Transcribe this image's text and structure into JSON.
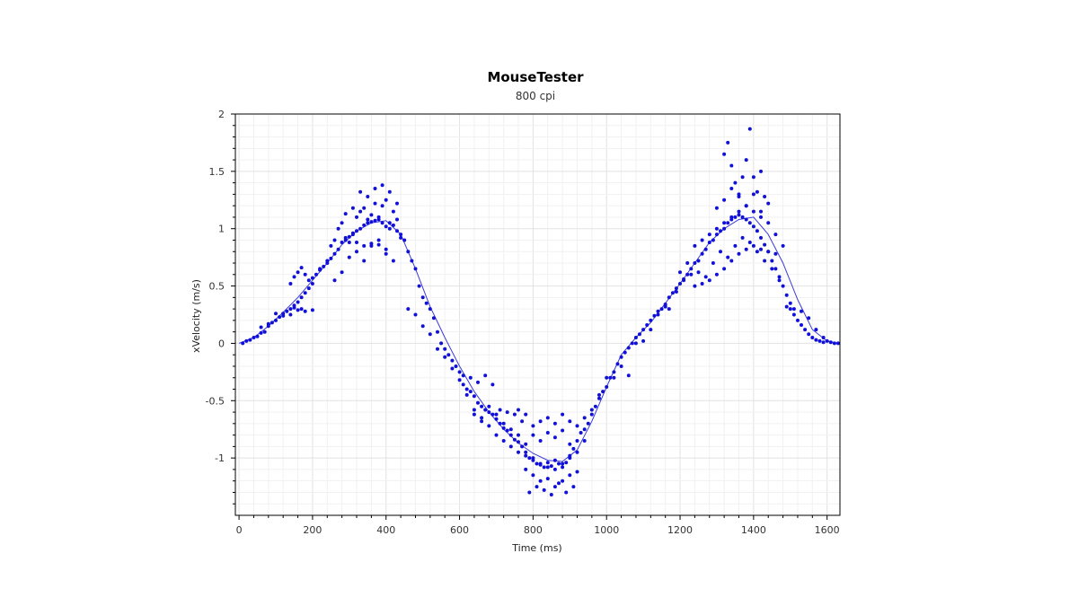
{
  "chart_data": {
    "type": "scatter",
    "title": "MouseTester",
    "subtitle": "800 cpi",
    "xlabel": "Time (ms)",
    "ylabel": "xVelocity (m/s)",
    "xlim": [
      -10,
      1635
    ],
    "ylim": [
      -1.5,
      2
    ],
    "xticks": [
      0,
      200,
      400,
      600,
      800,
      1000,
      1200,
      1400,
      1600
    ],
    "yticks": [
      -1,
      -0.5,
      0,
      0.5,
      1,
      1.5,
      2
    ],
    "grid": true,
    "legend": "none",
    "colors": {
      "points": "#1010d8",
      "line": "#3a3ad8",
      "grid": "#ebebeb",
      "axis": "#000000"
    },
    "series": [
      {
        "style": "line",
        "x": [
          0,
          40,
          80,
          120,
          160,
          200,
          240,
          280,
          320,
          360,
          400,
          440,
          480,
          520,
          560,
          600,
          640,
          680,
          720,
          760,
          800,
          840,
          880,
          920,
          960,
          1000,
          1040,
          1080,
          1120,
          1160,
          1200,
          1240,
          1280,
          1320,
          1360,
          1400,
          1440,
          1480,
          1520,
          1560,
          1600,
          1630
        ],
        "y": [
          0,
          0.05,
          0.15,
          0.27,
          0.4,
          0.55,
          0.7,
          0.86,
          0.98,
          1.05,
          1.07,
          0.95,
          0.65,
          0.32,
          0.05,
          -0.2,
          -0.42,
          -0.6,
          -0.75,
          -0.87,
          -0.96,
          -1.02,
          -1.03,
          -0.93,
          -0.68,
          -0.38,
          -0.1,
          0.05,
          0.18,
          0.35,
          0.52,
          0.7,
          0.88,
          1.0,
          1.08,
          1.1,
          0.95,
          0.7,
          0.38,
          0.12,
          0.02,
          0
        ]
      },
      {
        "style": "points",
        "x": [
          10,
          20,
          30,
          40,
          50,
          60,
          70,
          80,
          90,
          100,
          110,
          120,
          130,
          140,
          150,
          160,
          170,
          180,
          190,
          200,
          60,
          80,
          100,
          120,
          140,
          150,
          160,
          170,
          180,
          200,
          140,
          150,
          160,
          170,
          180,
          190,
          200,
          210,
          220,
          230,
          240,
          250,
          260,
          270,
          280,
          290,
          300,
          310,
          320,
          330,
          340,
          350,
          360,
          370,
          380,
          390,
          400,
          410,
          420,
          430,
          440,
          450,
          220,
          240,
          250,
          260,
          270,
          280,
          290,
          300,
          310,
          320,
          330,
          340,
          350,
          360,
          370,
          380,
          390,
          400,
          410,
          420,
          430,
          440,
          260,
          280,
          300,
          320,
          340,
          360,
          380,
          400,
          420,
          290,
          310,
          330,
          350,
          370,
          390,
          410,
          430,
          320,
          340,
          360,
          380,
          400,
          460,
          470,
          480,
          490,
          500,
          510,
          520,
          530,
          540,
          550,
          560,
          570,
          580,
          590,
          600,
          460,
          480,
          500,
          520,
          540,
          560,
          580,
          600,
          610,
          620,
          630,
          640,
          650,
          660,
          670,
          680,
          690,
          700,
          710,
          720,
          730,
          740,
          750,
          760,
          610,
          630,
          650,
          670,
          690,
          710,
          730,
          750,
          770,
          620,
          640,
          660,
          680,
          700,
          720,
          740,
          760,
          780,
          640,
          660,
          680,
          700,
          720,
          740,
          760,
          780,
          800,
          820,
          840,
          860,
          880,
          900,
          920,
          940,
          770,
          780,
          790,
          800,
          810,
          820,
          830,
          840,
          850,
          860,
          870,
          880,
          890,
          900,
          910,
          920,
          930,
          940,
          780,
          800,
          820,
          840,
          860,
          880,
          900,
          920,
          790,
          810,
          830,
          850,
          870,
          890,
          910,
          760,
          780,
          800,
          820,
          840,
          860,
          880,
          900,
          920,
          800,
          820,
          840,
          860,
          880,
          900,
          940,
          950,
          960,
          970,
          980,
          990,
          1000,
          1010,
          1020,
          1030,
          1040,
          1050,
          1060,
          1070,
          1080,
          1090,
          1100,
          1110,
          1120,
          1130,
          1140,
          1150,
          1160,
          960,
          980,
          1000,
          1020,
          1040,
          1060,
          1080,
          1100,
          1120,
          1140,
          1160,
          1170,
          1180,
          1190,
          1200,
          1210,
          1220,
          1230,
          1240,
          1250,
          1260,
          1270,
          1280,
          1290,
          1300,
          1310,
          1320,
          1330,
          1340,
          1350,
          1360,
          1370,
          1380,
          1390,
          1400,
          1410,
          1420,
          1430,
          1440,
          1450,
          1460,
          1470,
          1480,
          1490,
          1500,
          1170,
          1190,
          1210,
          1230,
          1250,
          1270,
          1290,
          1310,
          1330,
          1350,
          1370,
          1390,
          1410,
          1430,
          1450,
          1470,
          1490,
          1200,
          1220,
          1240,
          1260,
          1280,
          1300,
          1320,
          1340,
          1360,
          1380,
          1400,
          1420,
          1440,
          1460,
          1480,
          1240,
          1260,
          1280,
          1300,
          1320,
          1340,
          1360,
          1380,
          1400,
          1420,
          1440,
          1460,
          1500,
          1510,
          1520,
          1530,
          1540,
          1550,
          1560,
          1570,
          1580,
          1590,
          1600,
          1610,
          1620,
          1630,
          1510,
          1530,
          1550,
          1570,
          1590,
          1320,
          1330,
          1340,
          1350,
          1360,
          1370,
          1380,
          1390,
          1400,
          1410,
          1420,
          1430,
          1300,
          1320,
          1340,
          1360,
          1380,
          1400,
          1420,
          1440
        ],
        "y": [
          0.0,
          0.02,
          0.03,
          0.05,
          0.06,
          0.09,
          0.1,
          0.15,
          0.18,
          0.2,
          0.23,
          0.26,
          0.28,
          0.3,
          0.33,
          0.36,
          0.4,
          0.44,
          0.48,
          0.52,
          0.14,
          0.17,
          0.26,
          0.24,
          0.25,
          0.31,
          0.29,
          0.3,
          0.28,
          0.29,
          0.52,
          0.58,
          0.62,
          0.66,
          0.6,
          0.55,
          0.57,
          0.6,
          0.64,
          0.67,
          0.72,
          0.74,
          0.78,
          0.82,
          0.88,
          0.9,
          0.93,
          0.95,
          0.98,
          1.0,
          1.03,
          1.05,
          1.06,
          1.07,
          1.08,
          1.05,
          1.02,
          1.0,
          1.03,
          0.98,
          0.95,
          0.9,
          0.65,
          0.7,
          0.85,
          0.9,
          1.0,
          1.05,
          0.92,
          0.88,
          0.96,
          1.1,
          1.15,
          1.18,
          1.08,
          1.12,
          1.22,
          1.1,
          1.2,
          1.25,
          1.05,
          1.15,
          1.08,
          0.92,
          0.55,
          0.62,
          0.75,
          0.8,
          0.72,
          0.85,
          0.9,
          0.78,
          0.72,
          1.13,
          1.18,
          1.32,
          1.28,
          1.35,
          1.38,
          1.32,
          1.22,
          0.88,
          0.85,
          0.87,
          0.86,
          0.82,
          0.8,
          0.72,
          0.65,
          0.5,
          0.4,
          0.35,
          0.3,
          0.22,
          0.1,
          0.0,
          -0.05,
          -0.1,
          -0.15,
          -0.2,
          -0.25,
          0.3,
          0.25,
          0.15,
          0.08,
          -0.05,
          -0.12,
          -0.22,
          -0.32,
          -0.36,
          -0.4,
          -0.42,
          -0.46,
          -0.52,
          -0.55,
          -0.58,
          -0.6,
          -0.62,
          -0.66,
          -0.7,
          -0.74,
          -0.76,
          -0.8,
          -0.84,
          -0.86,
          -0.28,
          -0.3,
          -0.34,
          -0.28,
          -0.36,
          -0.58,
          -0.6,
          -0.62,
          -0.68,
          -0.45,
          -0.62,
          -0.68,
          -0.55,
          -0.62,
          -0.7,
          -0.75,
          -0.8,
          -0.88,
          -0.58,
          -0.65,
          -0.72,
          -0.8,
          -0.85,
          -0.9,
          -0.95,
          -0.98,
          -1.0,
          -1.05,
          -1.08,
          -1.1,
          -1.05,
          -1.0,
          -0.95,
          -0.85,
          -0.9,
          -0.95,
          -1.0,
          -1.02,
          -1.05,
          -1.06,
          -1.08,
          -1.04,
          -1.07,
          -1.02,
          -1.05,
          -1.08,
          -1.04,
          -0.98,
          -0.92,
          -0.85,
          -0.78,
          -0.65,
          -1.1,
          -1.15,
          -1.2,
          -1.18,
          -1.25,
          -1.2,
          -1.15,
          -1.12,
          -1.3,
          -1.25,
          -1.28,
          -1.32,
          -1.22,
          -1.3,
          -1.25,
          -0.58,
          -0.62,
          -0.72,
          -0.68,
          -0.65,
          -0.7,
          -0.62,
          -0.68,
          -0.72,
          -0.8,
          -0.85,
          -0.78,
          -0.82,
          -0.76,
          -0.88,
          -0.75,
          -0.7,
          -0.62,
          -0.55,
          -0.48,
          -0.42,
          -0.38,
          -0.3,
          -0.25,
          -0.18,
          -0.12,
          -0.08,
          -0.04,
          0.0,
          0.05,
          0.08,
          0.12,
          0.16,
          0.2,
          0.24,
          0.28,
          0.3,
          0.34,
          -0.58,
          -0.45,
          -0.3,
          -0.3,
          -0.2,
          -0.28,
          0.0,
          0.02,
          0.12,
          0.25,
          0.32,
          0.4,
          0.44,
          0.48,
          0.52,
          0.56,
          0.6,
          0.65,
          0.7,
          0.72,
          0.78,
          0.82,
          0.88,
          0.9,
          0.95,
          0.98,
          1.0,
          1.05,
          1.08,
          1.1,
          1.12,
          1.1,
          1.08,
          1.05,
          1.02,
          0.98,
          0.92,
          0.86,
          0.8,
          0.72,
          0.65,
          0.58,
          0.5,
          0.42,
          0.35,
          0.3,
          0.45,
          0.55,
          0.6,
          0.62,
          0.58,
          0.7,
          0.8,
          0.75,
          0.85,
          0.92,
          0.88,
          0.8,
          0.72,
          0.65,
          0.55,
          0.32,
          0.62,
          0.7,
          0.85,
          0.9,
          0.95,
          1.0,
          1.05,
          1.1,
          1.15,
          1.2,
          1.15,
          1.1,
          1.05,
          0.95,
          0.85,
          0.5,
          0.52,
          0.55,
          0.6,
          0.65,
          0.72,
          0.78,
          0.82,
          0.85,
          0.82,
          0.8,
          0.78,
          0.3,
          0.25,
          0.2,
          0.16,
          0.12,
          0.08,
          0.05,
          0.03,
          0.02,
          0.01,
          0.02,
          0.01,
          0.0,
          0.0,
          0.3,
          0.28,
          0.22,
          0.12,
          0.05,
          1.65,
          1.75,
          1.55,
          1.4,
          1.3,
          1.45,
          1.6,
          1.87,
          1.45,
          1.32,
          1.5,
          1.28,
          1.18,
          1.25,
          1.35,
          1.28,
          1.2,
          1.3,
          1.15,
          1.22
        ]
      }
    ]
  }
}
